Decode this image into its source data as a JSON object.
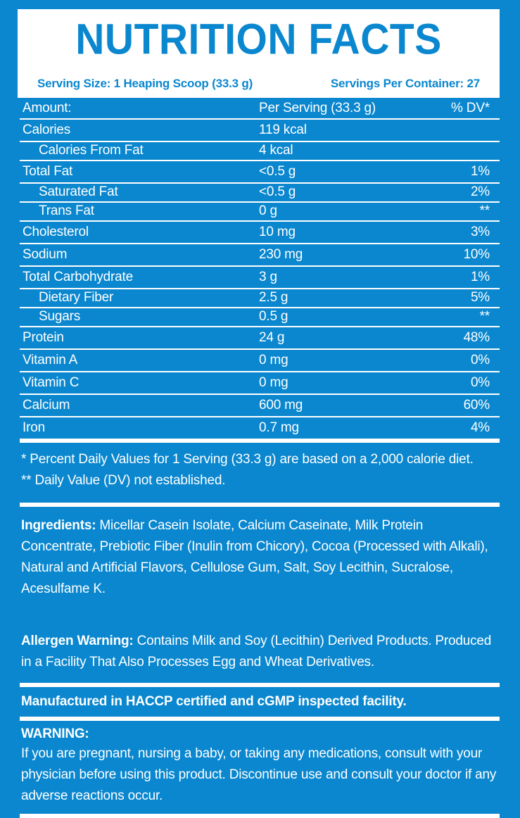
{
  "colors": {
    "background_blue": "#0a87cf",
    "panel_white": "#ffffff"
  },
  "header": {
    "title": "NUTRITION FACTS",
    "serving_size": "Serving Size: 1 Heaping Scoop (33.3 g)",
    "servings_per_container": "Servings Per Container: 27"
  },
  "table": {
    "columns": [
      "Amount:",
      "Per Serving (33.3 g)",
      "% DV*"
    ],
    "rows": [
      {
        "name": "Calories",
        "amount": "119 kcal",
        "dv": "",
        "indent": false
      },
      {
        "name": "Calories From Fat",
        "amount": "4 kcal",
        "dv": "",
        "indent": true
      },
      {
        "name": "Total Fat",
        "amount": "<0.5 g",
        "dv": "1%",
        "indent": false
      },
      {
        "name": "Saturated Fat",
        "amount": "<0.5 g",
        "dv": "2%",
        "indent": true
      },
      {
        "name": "Trans Fat",
        "amount": "0 g",
        "dv": "**",
        "indent": true
      },
      {
        "name": "Cholesterol",
        "amount": "10 mg",
        "dv": "3%",
        "indent": false
      },
      {
        "name": "Sodium",
        "amount": "230 mg",
        "dv": "10%",
        "indent": false
      },
      {
        "name": "Total Carbohydrate",
        "amount": "3 g",
        "dv": "1%",
        "indent": false
      },
      {
        "name": "Dietary Fiber",
        "amount": "2.5 g",
        "dv": "5%",
        "indent": true
      },
      {
        "name": "Sugars",
        "amount": "0.5 g",
        "dv": "**",
        "indent": true
      },
      {
        "name": "Protein",
        "amount": "24 g",
        "dv": "48%",
        "indent": false
      },
      {
        "name": "Vitamin A",
        "amount": "0 mg",
        "dv": "0%",
        "indent": false
      },
      {
        "name": "Vitamin C",
        "amount": "0 mg",
        "dv": "0%",
        "indent": false
      },
      {
        "name": "Calcium",
        "amount": "600 mg",
        "dv": "60%",
        "indent": false
      },
      {
        "name": "Iron",
        "amount": "0.7 mg",
        "dv": "4%",
        "indent": false
      }
    ]
  },
  "footnotes": {
    "daily_values": "* Percent Daily Values for 1 Serving (33.3 g) are based on a 2,000 calorie diet.",
    "not_established": "** Daily Value (DV) not established."
  },
  "ingredients": {
    "label": "Ingredients:",
    "text": " Micellar Casein Isolate, Calcium Caseinate, Milk Protein Concentrate, Prebiotic Fiber (Inulin from Chicory), Cocoa (Processed with Alkali), Natural and Artificial Flavors, Cellulose Gum, Salt, Soy Lecithin, Sucralose, Acesulfame K."
  },
  "allergen": {
    "label": "Allergen Warning:",
    "text": " Contains Milk and Soy (Lecithin) Derived Products. Produced in a Facility That Also Processes Egg and Wheat Derivatives."
  },
  "manufactured": "Manufactured in HACCP certified and cGMP inspected facility.",
  "warning": {
    "label": "WARNING:",
    "text": "If you are pregnant, nursing a baby, or taking any medications, consult with your physician before using this product. Discontinue use and consult your doctor if any adverse reactions occur."
  }
}
